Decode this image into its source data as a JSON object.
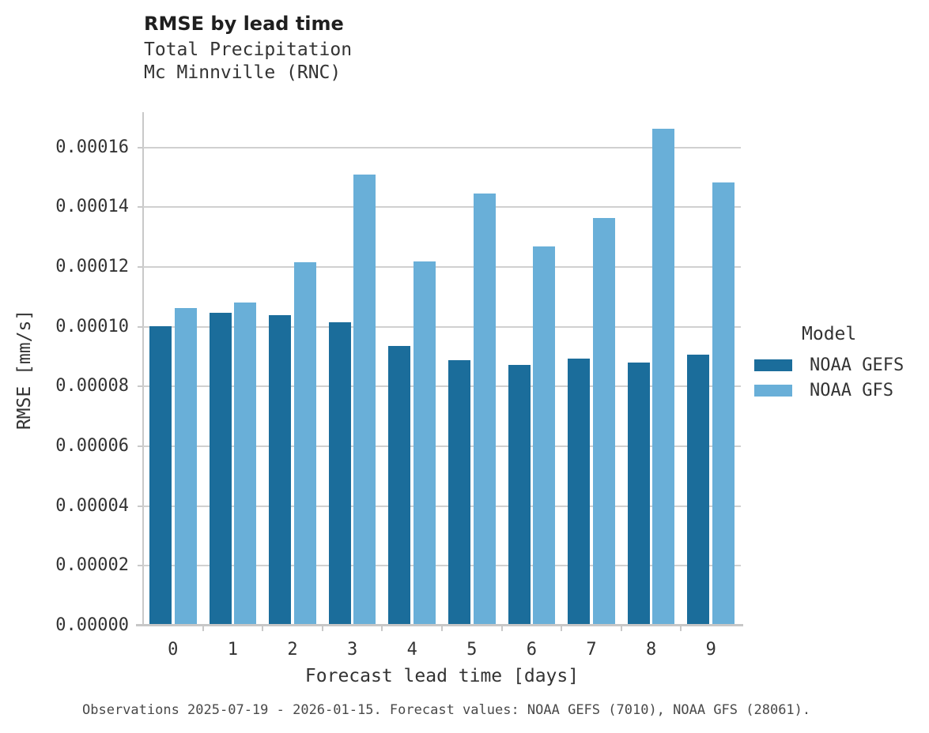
{
  "caption": "Observations 2025-07-19 - 2026-01-15. Forecast values: NOAA GEFS (7010), NOAA GFS (28061).",
  "chart_data": {
    "type": "bar",
    "title": "RMSE by lead time",
    "subtitle_lines": [
      "Total Precipitation",
      "Mc Minnville (RNC)"
    ],
    "xlabel": "Forecast lead time [days]",
    "ylabel": "RMSE [mm/s]",
    "legend_title": "Model",
    "legend_position": "right",
    "grid": "horizontal",
    "categories": [
      "0",
      "1",
      "2",
      "3",
      "4",
      "5",
      "6",
      "7",
      "8",
      "9"
    ],
    "series": [
      {
        "name": "NOAA GEFS",
        "color": "#1b6d9b",
        "values": [
          0.0001001,
          0.0001048,
          0.0001039,
          0.0001015,
          9.36e-05,
          8.87e-05,
          8.72e-05,
          8.94e-05,
          8.8e-05,
          9.08e-05
        ]
      },
      {
        "name": "NOAA GFS",
        "color": "#69afd8",
        "values": [
          0.0001064,
          0.0001081,
          0.0001215,
          0.000151,
          0.000122,
          0.0001447,
          0.000127,
          0.0001363,
          0.0001664,
          0.0001482
        ]
      }
    ],
    "ylim": [
      0,
      0.0001713
    ],
    "yticks": [
      0,
      2e-05,
      4e-05,
      6e-05,
      8e-05,
      0.0001,
      0.00012,
      0.00014,
      0.00016
    ],
    "ytick_labels": [
      "0.00000",
      "0.00002",
      "0.00004",
      "0.00006",
      "0.00008",
      "0.00010",
      "0.00012",
      "0.00014",
      "0.00016"
    ]
  }
}
